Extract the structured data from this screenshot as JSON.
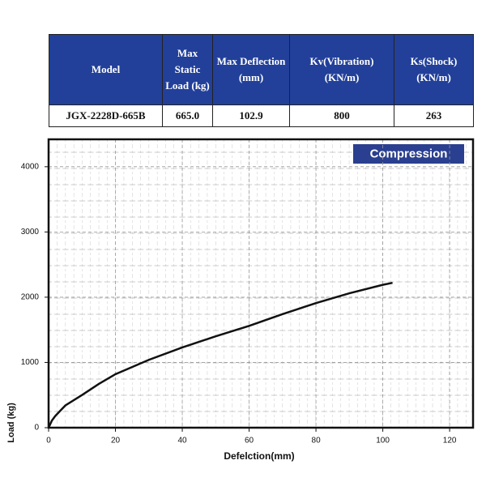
{
  "table": {
    "header": [
      "Model",
      "Max Static Load (kg)",
      "Max Deflection (mm)",
      "Kv(Vibration) (KN/m)",
      "Ks(Shock) (KN/m)"
    ],
    "rows": [
      [
        "JGX-2228D-665B",
        "665.0",
        "102.9",
        "800",
        "263"
      ]
    ]
  },
  "chart_data": {
    "type": "line",
    "annotation": "Compression",
    "x_label": "Defelction(mm)",
    "y_label": "Load (kg)",
    "x": [
      0,
      1,
      2,
      5,
      10,
      15,
      20,
      30,
      40,
      50,
      60,
      70,
      80,
      90,
      100,
      102.9
    ],
    "series": [
      {
        "name": "Compression",
        "color": "#111111",
        "values": [
          0,
          110,
          180,
          340,
          500,
          670,
          820,
          1040,
          1230,
          1400,
          1560,
          1740,
          1910,
          2060,
          2190,
          2220
        ]
      }
    ],
    "xlim": [
      0,
      127
    ],
    "ylim": [
      0,
      4420
    ],
    "xticks": [
      0,
      20,
      40,
      60,
      80,
      100,
      120
    ],
    "yticks": [
      0,
      1000,
      2000,
      3000,
      4000
    ],
    "grid": true
  }
}
